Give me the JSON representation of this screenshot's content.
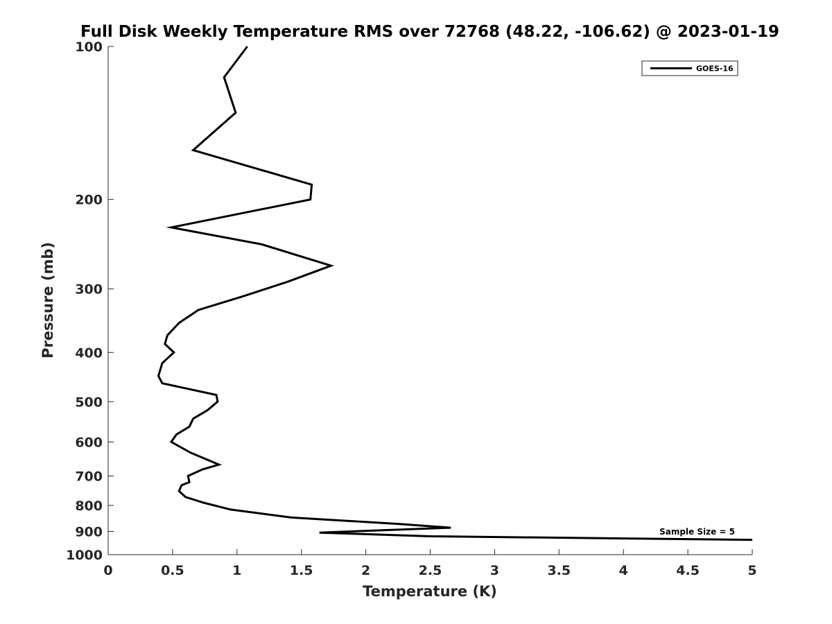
{
  "chart_data": {
    "type": "line",
    "title": "Full Disk Weekly Temperature RMS over 72768 (48.22, -106.62) @ 2023-01-19",
    "xlabel": "Temperature (K)",
    "ylabel": "Pressure (mb)",
    "xlim": [
      0,
      5
    ],
    "ylim": [
      100,
      1000
    ],
    "y_scale": "log",
    "y_reversed": true,
    "x_ticks": [
      0,
      0.5,
      1,
      1.5,
      2,
      2.5,
      3,
      3.5,
      4,
      4.5,
      5
    ],
    "x_tick_labels": [
      "0",
      "0.5",
      "1",
      "1.5",
      "2",
      "2.5",
      "3",
      "3.5",
      "4",
      "4.5",
      "5"
    ],
    "y_ticks": [
      100,
      200,
      300,
      400,
      500,
      600,
      700,
      800,
      900,
      1000
    ],
    "y_tick_labels": [
      "100",
      "200",
      "300",
      "400",
      "500",
      "600",
      "700",
      "800",
      "900",
      "1000"
    ],
    "grid": false,
    "legend_position": "top-right",
    "annotation": "Sample Size = 5",
    "series": [
      {
        "name": "GOES-16",
        "color": "#000000",
        "x": [
          1.08,
          0.9,
          0.99,
          0.66,
          1.58,
          1.57,
          0.49,
          1.19,
          1.73,
          1.4,
          1.05,
          0.7,
          0.55,
          0.46,
          0.44,
          0.51,
          0.42,
          0.39,
          0.42,
          0.84,
          0.85,
          0.77,
          0.66,
          0.63,
          0.53,
          0.49,
          0.64,
          0.86,
          0.73,
          0.62,
          0.63,
          0.57,
          0.55,
          0.6,
          0.74,
          0.95,
          1.42,
          2.26,
          2.66,
          1.64,
          2.5,
          5.0
        ],
        "y": [
          100,
          115,
          135,
          160,
          187,
          200,
          227,
          245,
          270,
          290,
          310,
          330,
          350,
          370,
          385,
          400,
          420,
          445,
          460,
          485,
          500,
          520,
          540,
          560,
          580,
          600,
          630,
          665,
          680,
          700,
          720,
          730,
          750,
          770,
          790,
          815,
          845,
          870,
          885,
          905,
          920,
          935
        ]
      }
    ]
  }
}
